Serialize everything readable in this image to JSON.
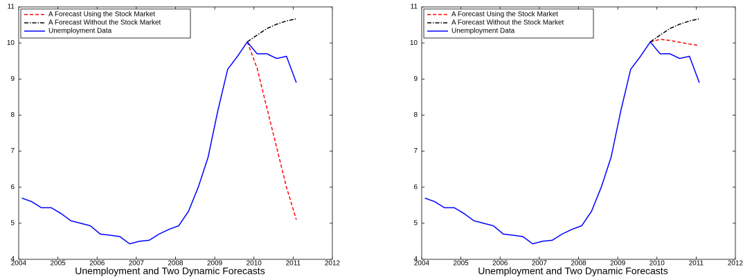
{
  "chart_data": [
    {
      "type": "line",
      "title": "Unemployment and Two Dynamic Forecasts",
      "xlim": [
        2004,
        2012
      ],
      "xticks": [
        2004,
        2005,
        2006,
        2007,
        2008,
        2009,
        2010,
        2011,
        2012
      ],
      "ylim": [
        4,
        11
      ],
      "yticks": [
        4,
        5,
        6,
        7,
        8,
        9,
        10,
        11
      ],
      "legend": "upper-left",
      "series": [
        {
          "name": "A Forecast Using the Stock Market",
          "color": "#ff0000",
          "style": "dashed",
          "x": [
            2009.83,
            2010.08,
            2010.33,
            2010.58,
            2010.83,
            2011.08
          ],
          "values": [
            10.03,
            9.3,
            8.2,
            7.1,
            6.0,
            5.1
          ]
        },
        {
          "name": "A Forecast Without the Stock Market",
          "color": "#000000",
          "style": "dashdot",
          "x": [
            2009.83,
            2010.08,
            2010.33,
            2010.58,
            2010.83,
            2011.08
          ],
          "values": [
            10.03,
            10.22,
            10.4,
            10.52,
            10.61,
            10.67
          ]
        },
        {
          "name": "Unemployment Data",
          "color": "#0000ff",
          "style": "solid",
          "x": [
            2004.08,
            2004.33,
            2004.58,
            2004.83,
            2005.08,
            2005.33,
            2005.58,
            2005.83,
            2006.08,
            2006.33,
            2006.58,
            2006.83,
            2007.08,
            2007.33,
            2007.58,
            2007.83,
            2008.08,
            2008.33,
            2008.58,
            2008.83,
            2009.08,
            2009.33,
            2009.58,
            2009.83,
            2010.08,
            2010.33,
            2010.58,
            2010.83,
            2011.08
          ],
          "values": [
            5.7,
            5.6,
            5.43,
            5.43,
            5.27,
            5.07,
            5.0,
            4.93,
            4.7,
            4.67,
            4.63,
            4.43,
            4.5,
            4.53,
            4.7,
            4.83,
            4.93,
            5.33,
            6.0,
            6.83,
            8.13,
            9.27,
            9.63,
            10.03,
            9.7,
            9.7,
            9.57,
            9.63,
            8.9
          ]
        }
      ]
    },
    {
      "type": "line",
      "title": "Unemployment and Two Dynamic Forecasts",
      "xlim": [
        2004,
        2012
      ],
      "xticks": [
        2004,
        2005,
        2006,
        2007,
        2008,
        2009,
        2010,
        2011,
        2012
      ],
      "ylim": [
        4,
        11
      ],
      "yticks": [
        4,
        5,
        6,
        7,
        8,
        9,
        10,
        11
      ],
      "legend": "upper-left",
      "series": [
        {
          "name": "A Forecast Using the Stock Market",
          "color": "#ff0000",
          "style": "dashed",
          "x": [
            2009.83,
            2010.08,
            2010.33,
            2010.58,
            2010.83,
            2011.08
          ],
          "values": [
            10.03,
            10.1,
            10.07,
            10.02,
            9.97,
            9.93
          ]
        },
        {
          "name": "A Forecast Without the Stock Market",
          "color": "#000000",
          "style": "dashdot",
          "x": [
            2009.83,
            2010.08,
            2010.33,
            2010.58,
            2010.83,
            2011.08
          ],
          "values": [
            10.03,
            10.22,
            10.4,
            10.52,
            10.61,
            10.67
          ]
        },
        {
          "name": "Unemployment Data",
          "color": "#0000ff",
          "style": "solid",
          "x": [
            2004.08,
            2004.33,
            2004.58,
            2004.83,
            2005.08,
            2005.33,
            2005.58,
            2005.83,
            2006.08,
            2006.33,
            2006.58,
            2006.83,
            2007.08,
            2007.33,
            2007.58,
            2007.83,
            2008.08,
            2008.33,
            2008.58,
            2008.83,
            2009.08,
            2009.33,
            2009.58,
            2009.83,
            2010.08,
            2010.33,
            2010.58,
            2010.83,
            2011.08
          ],
          "values": [
            5.7,
            5.6,
            5.43,
            5.43,
            5.27,
            5.07,
            5.0,
            4.93,
            4.7,
            4.67,
            4.63,
            4.43,
            4.5,
            4.53,
            4.7,
            4.83,
            4.93,
            5.33,
            6.0,
            6.83,
            8.13,
            9.27,
            9.63,
            10.03,
            9.7,
            9.7,
            9.57,
            9.63,
            8.9
          ]
        }
      ]
    }
  ]
}
